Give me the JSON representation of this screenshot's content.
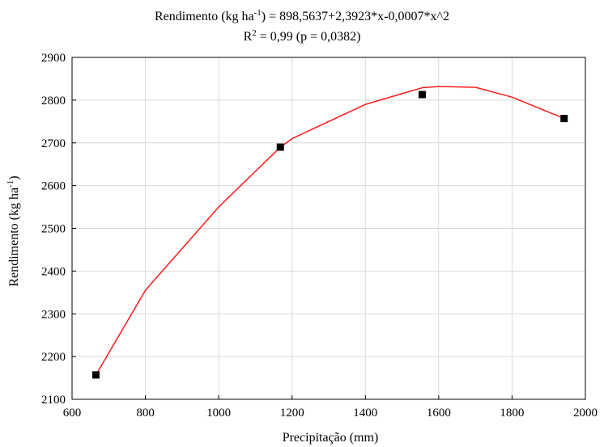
{
  "chart_data": {
    "type": "scatter",
    "title_parts": {
      "line1_prefix": "Rendimento (kg ha",
      "line1_superscript": "-1",
      "line1_suffix": ") = 898,5637+2,3923*x-0,0007*x^2",
      "line2_prefix": "R",
      "line2_superscript": "2",
      "line2_suffix": " = 0,99 (p = 0,0382)"
    },
    "xlabel": "Precipitação (mm)",
    "ylabel_parts": {
      "prefix": "Rendimento (kg ha",
      "superscript": "-1",
      "suffix": ")"
    },
    "xlim": [
      600,
      2000
    ],
    "ylim": [
      2100,
      2900
    ],
    "x_ticks": [
      600,
      800,
      1000,
      1200,
      1400,
      1600,
      1800,
      2000
    ],
    "y_ticks": [
      2100,
      2200,
      2300,
      2400,
      2500,
      2600,
      2700,
      2800,
      2900
    ],
    "grid": true,
    "points": {
      "x": [
        665,
        1168,
        1555,
        1942
      ],
      "y": [
        2157,
        2690,
        2813,
        2757
      ]
    },
    "fit_curve": {
      "type": "quadratic",
      "x_range": [
        665,
        1942
      ],
      "samples": [
        [
          665,
          2157
        ],
        [
          800,
          2355
        ],
        [
          1000,
          2550
        ],
        [
          1168,
          2690
        ],
        [
          1200,
          2710
        ],
        [
          1400,
          2790
        ],
        [
          1555,
          2829
        ],
        [
          1600,
          2832
        ],
        [
          1700,
          2830
        ],
        [
          1800,
          2807
        ],
        [
          1942,
          2757
        ]
      ]
    },
    "colors": {
      "curve": "#ff1a1a",
      "points": "#000000",
      "grid": "#d9d9d9",
      "axis": "#000000"
    }
  }
}
